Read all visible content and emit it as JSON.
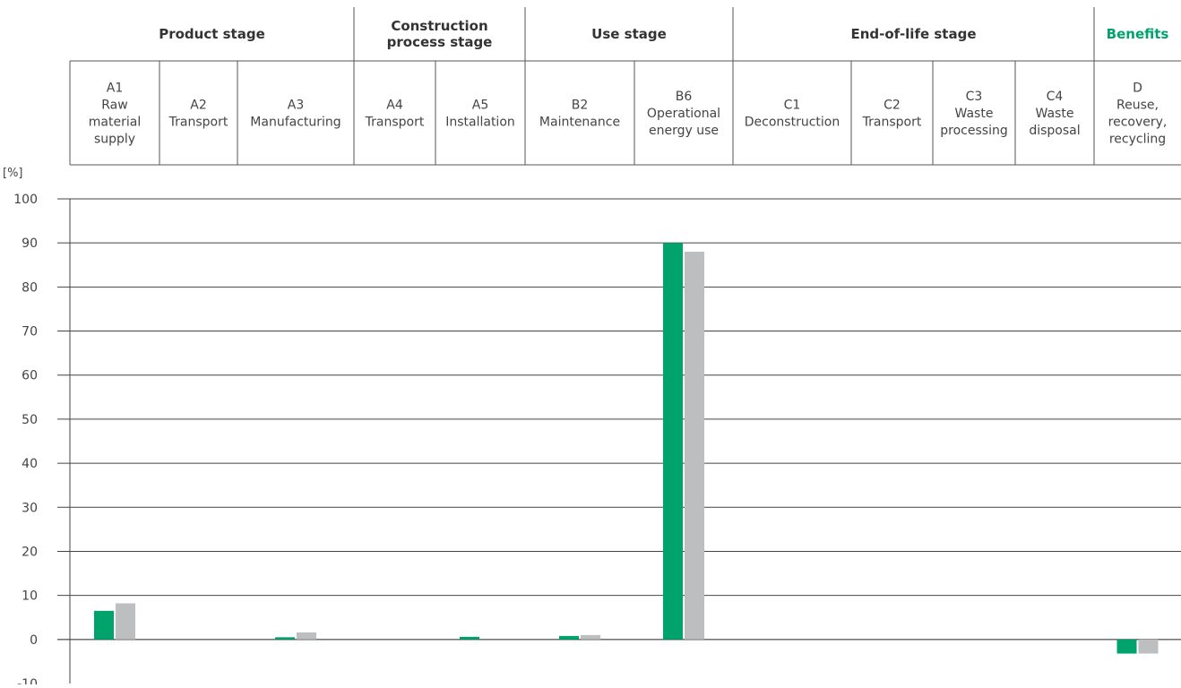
{
  "chart_data": {
    "type": "bar",
    "ylabel": "[%]",
    "ylim": [
      -10,
      100
    ],
    "yticks": [
      100,
      90,
      80,
      70,
      60,
      50,
      40,
      30,
      20,
      10,
      0,
      -10
    ],
    "grid": true,
    "stages": [
      {
        "lines": [
          "Product stage"
        ],
        "first": 0,
        "last": 2,
        "highlight": false
      },
      {
        "lines": [
          "Construction",
          "process stage"
        ],
        "first": 3,
        "last": 4,
        "highlight": false
      },
      {
        "lines": [
          "Use stage"
        ],
        "first": 5,
        "last": 6,
        "highlight": false
      },
      {
        "lines": [
          "End-of-life stage"
        ],
        "first": 7,
        "last": 10,
        "highlight": false
      },
      {
        "lines": [
          "Benefits"
        ],
        "first": 11,
        "last": 11,
        "highlight": true
      }
    ],
    "categories": [
      {
        "lines": [
          "A1",
          "Raw",
          "material",
          "supply"
        ]
      },
      {
        "lines": [
          "A2",
          "Transport"
        ]
      },
      {
        "lines": [
          "A3",
          "Manufacturing"
        ]
      },
      {
        "lines": [
          "A4",
          "Transport"
        ]
      },
      {
        "lines": [
          "A5",
          "Installation"
        ]
      },
      {
        "lines": [
          "B2",
          "Maintenance"
        ]
      },
      {
        "lines": [
          "B6",
          "Operational",
          "energy use"
        ]
      },
      {
        "lines": [
          "C1",
          "Deconstruction"
        ]
      },
      {
        "lines": [
          "C2",
          "Transport"
        ]
      },
      {
        "lines": [
          "C3",
          "Waste",
          "processing"
        ]
      },
      {
        "lines": [
          "C4",
          "Waste",
          "disposal"
        ]
      },
      {
        "lines": [
          "D",
          "Reuse,",
          "recovery,",
          "recycling"
        ]
      }
    ],
    "series": [
      {
        "color": "#00a36c",
        "values": [
          6.5,
          0,
          0.5,
          0,
          0.6,
          0.8,
          90,
          0,
          0,
          0,
          0,
          -3.2
        ]
      },
      {
        "color": "#bcbec0",
        "values": [
          8.2,
          0,
          1.6,
          0,
          0,
          1.0,
          88,
          0,
          0,
          0,
          0,
          -3.2
        ]
      }
    ]
  }
}
